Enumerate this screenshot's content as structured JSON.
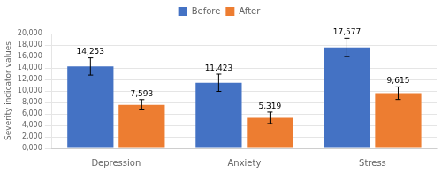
{
  "chart_data": {
    "type": "bar",
    "ylabel": "Severity indicator values",
    "categories": [
      "Depression",
      "Anxiety",
      "Stress"
    ],
    "series": [
      {
        "name": "Before",
        "color": "#4472C4",
        "values": [
          14253,
          11423,
          17577
        ],
        "errors": [
          1500,
          1500,
          1600
        ],
        "value_labels": [
          "14,253",
          "11,423",
          "17,577"
        ]
      },
      {
        "name": "After",
        "color": "#ED7D31",
        "values": [
          7593,
          5319,
          9615
        ],
        "errors": [
          900,
          1000,
          1100
        ],
        "value_labels": [
          "7,593",
          "5,319",
          "9,615"
        ]
      }
    ],
    "ylim": [
      0,
      20000
    ],
    "yticks": [
      {
        "value": 0,
        "label": "0,000"
      },
      {
        "value": 2000,
        "label": "2,000"
      },
      {
        "value": 4000,
        "label": "4,000"
      },
      {
        "value": 6000,
        "label": "6,000"
      },
      {
        "value": 8000,
        "label": "8,000"
      },
      {
        "value": 10000,
        "label": "10,000"
      },
      {
        "value": 12000,
        "label": "12,000"
      },
      {
        "value": 14000,
        "label": "14,000"
      },
      {
        "value": 16000,
        "label": "16,000"
      },
      {
        "value": 18000,
        "label": "18,000"
      },
      {
        "value": 20000,
        "label": "20,000"
      }
    ],
    "grid": true,
    "legend": "top",
    "data_labels": true
  }
}
